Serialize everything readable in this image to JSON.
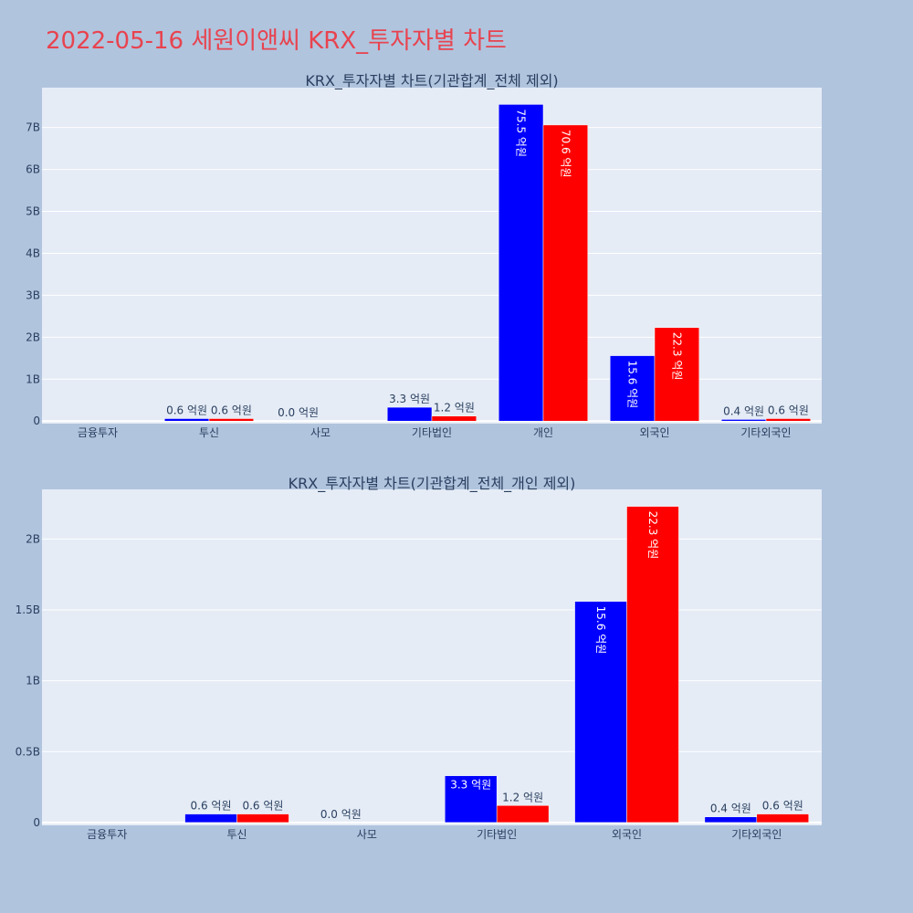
{
  "page": {
    "title": "2022-05-16 세원이앤씨 KRX_투자자별 차트"
  },
  "colors": {
    "background": "#b0c4de",
    "plot_bg": "#e5ecf6",
    "title": "#e8434f",
    "series_1": "#0000ff",
    "series_2": "#ff0000",
    "text": "#2a3f5f"
  },
  "chart_data": [
    {
      "type": "bar",
      "title": "KRX_투자자별 차트(기관합계_전체 제외)",
      "categories": [
        "금융투자",
        "투신",
        "사모",
        "기타법인",
        "개인",
        "외국인",
        "기타외국인"
      ],
      "series": [
        {
          "values": [
            0,
            0.06,
            0.0,
            0.33,
            7.55,
            1.56,
            0.04
          ],
          "labels": [
            "",
            "0.6 억원",
            "0.0 억원",
            "3.3 억원",
            "75.5 억원",
            "15.6 억원",
            "0.4 억원"
          ]
        },
        {
          "values": [
            0,
            0.06,
            0,
            0.12,
            7.06,
            2.23,
            0.06
          ],
          "labels": [
            "",
            "0.6 억원",
            "",
            "1.2 억원",
            "70.6 억원",
            "22.3 억원",
            "0.6 억원"
          ]
        }
      ],
      "yticks": [
        0,
        1,
        2,
        3,
        4,
        5,
        6,
        7
      ],
      "ytick_labels": [
        "0",
        "1B",
        "2B",
        "3B",
        "4B",
        "5B",
        "6B",
        "7B"
      ],
      "ylim": [
        -0.06,
        7.95
      ],
      "ylabel_unit": "B",
      "grid": true
    },
    {
      "type": "bar",
      "title": "KRX_투자자별 차트(기관합계_전체_개인 제외)",
      "categories": [
        "금융투자",
        "투신",
        "사모",
        "기타법인",
        "외국인",
        "기타외국인"
      ],
      "series": [
        {
          "values": [
            0,
            0.06,
            0.0,
            0.33,
            1.56,
            0.04
          ],
          "labels": [
            "",
            "0.6 억원",
            "0.0 억원",
            "3.3 억원",
            "15.6 억원",
            "0.4 억원"
          ]
        },
        {
          "values": [
            0,
            0.06,
            0,
            0.12,
            2.23,
            0.06
          ],
          "labels": [
            "",
            "0.6 억원",
            "",
            "1.2 억원",
            "22.3 억원",
            "0.6 억원"
          ]
        }
      ],
      "yticks": [
        0,
        0.5,
        1,
        1.5,
        2
      ],
      "ytick_labels": [
        "0",
        "0.5B",
        "1B",
        "1.5B",
        "2B"
      ],
      "ylim": [
        -0.02,
        2.35
      ],
      "ylabel_unit": "B",
      "grid": true
    }
  ]
}
